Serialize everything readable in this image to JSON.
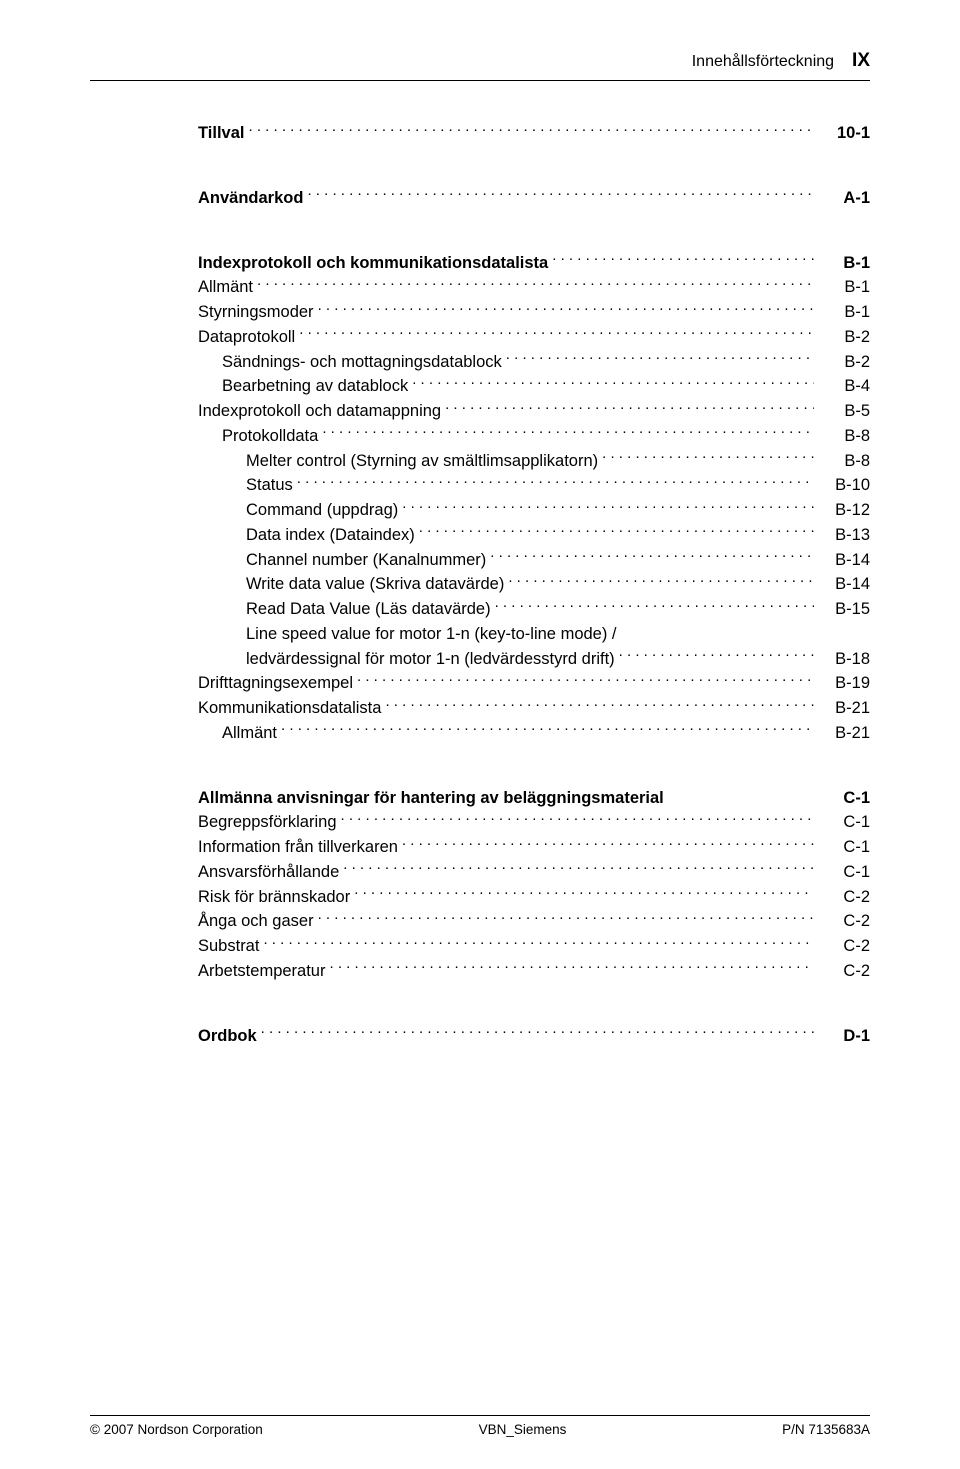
{
  "header": {
    "title": "Innehållsförteckning",
    "pagenum": "IX"
  },
  "sections": [
    {
      "rows": [
        {
          "label": "Tillval",
          "page": "10-1",
          "bold": true,
          "indent": 0
        }
      ]
    },
    {
      "rows": [
        {
          "label": "Användarkod",
          "page": "A-1",
          "bold": true,
          "indent": 0
        }
      ]
    },
    {
      "rows": [
        {
          "label": "Indexprotokoll och kommunikationsdatalista",
          "page": "B-1",
          "bold": true,
          "indent": 0
        },
        {
          "label": "Allmänt",
          "page": "B-1",
          "indent": 0
        },
        {
          "label": "Styrningsmoder",
          "page": "B-1",
          "indent": 0
        },
        {
          "label": "Dataprotokoll",
          "page": "B-2",
          "indent": 0
        },
        {
          "label": "Sändnings- och mottagningsdatablock",
          "page": "B-2",
          "indent": 1
        },
        {
          "label": "Bearbetning av datablock",
          "page": "B-4",
          "indent": 1
        },
        {
          "label": "Indexprotokoll och datamappning",
          "page": "B-5",
          "indent": 0
        },
        {
          "label": "Protokolldata",
          "page": "B-8",
          "indent": 1
        },
        {
          "label": "Melter control (Styrning av smältlimsapplikatorn)",
          "page": "B-8",
          "indent": 2
        },
        {
          "label": "Status",
          "page": "B-10",
          "indent": 2
        },
        {
          "label": "Command (uppdrag)",
          "page": "B-12",
          "indent": 2
        },
        {
          "label": "Data index (Dataindex)",
          "page": "B-13",
          "indent": 2
        },
        {
          "label": "Channel number (Kanalnummer)",
          "page": "B-14",
          "indent": 2
        },
        {
          "label": "Write data value (Skriva datavärde)",
          "page": "B-14",
          "indent": 2
        },
        {
          "label": "Read Data Value (Läs datavärde)",
          "page": "B-15",
          "indent": 2
        },
        {
          "label": "Line speed value for motor 1-n (key-to-line mode) /",
          "page": "",
          "indent": 2,
          "nodots": true
        },
        {
          "label": "ledvärdessignal för motor 1-n (ledvärdesstyrd drift)",
          "page": "B-18",
          "indent": 2
        },
        {
          "label": "Drifttagningsexempel",
          "page": "B-19",
          "indent": 0
        },
        {
          "label": "Kommunikationsdatalista",
          "page": "B-21",
          "indent": 0
        },
        {
          "label": "Allmänt",
          "page": "B-21",
          "indent": 1
        }
      ]
    },
    {
      "rows": [
        {
          "label": "Allmänna anvisningar för hantering av beläggningsmaterial",
          "page": "C-1",
          "bold": true,
          "indent": 0,
          "nodots": true
        },
        {
          "label": "Begreppsförklaring",
          "page": "C-1",
          "indent": 0
        },
        {
          "label": "Information från tillverkaren",
          "page": "C-1",
          "indent": 0
        },
        {
          "label": "Ansvarsförhållande",
          "page": "C-1",
          "indent": 0
        },
        {
          "label": "Risk för brännskador",
          "page": "C-2",
          "indent": 0
        },
        {
          "label": "Ånga och gaser",
          "page": "C-2",
          "indent": 0
        },
        {
          "label": "Substrat",
          "page": "C-2",
          "indent": 0
        },
        {
          "label": "Arbetstemperatur",
          "page": "C-2",
          "indent": 0
        }
      ]
    },
    {
      "rows": [
        {
          "label": "Ordbok",
          "page": "D-1",
          "bold": true,
          "indent": 0
        }
      ]
    }
  ],
  "footer": {
    "left": "2007 Nordson Corporation",
    "center": "VBN_Siemens",
    "right": "P/N 7135683A"
  }
}
